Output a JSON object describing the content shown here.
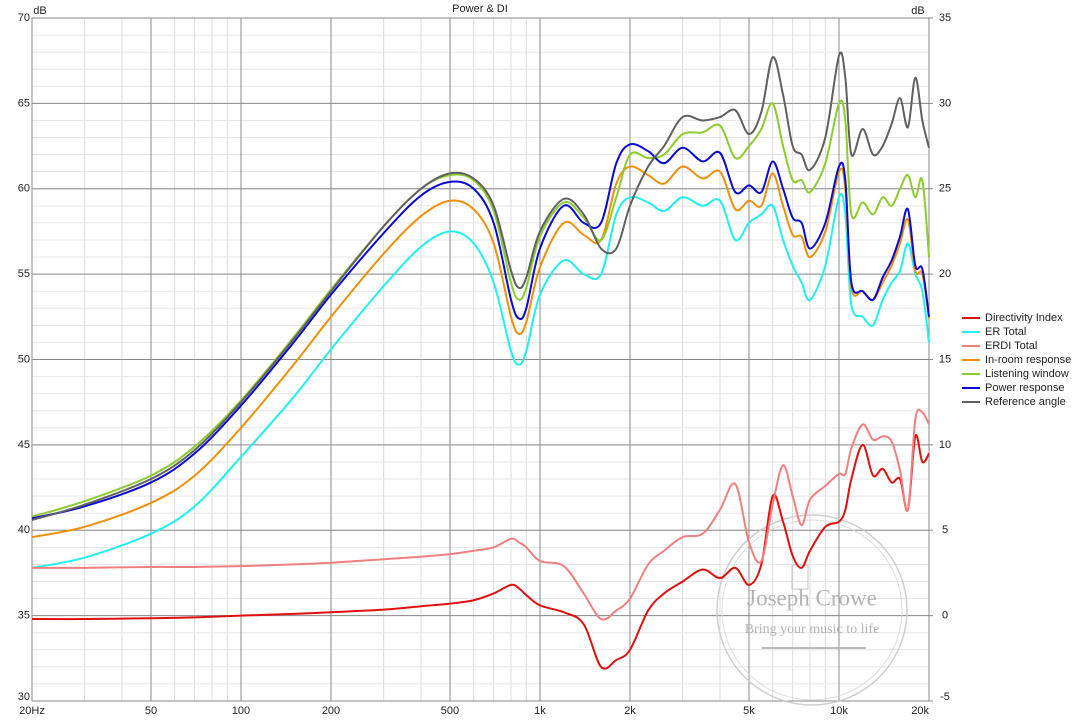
{
  "chart_data": {
    "type": "line",
    "title": "Power & DI",
    "y_label": "dB",
    "y2_label": "dB",
    "x_log": true,
    "grid": true,
    "minor_grid": true,
    "legend_position": "right",
    "xlim": [
      20,
      20000
    ],
    "ylim": [
      30,
      70
    ],
    "y2lim": [
      -5,
      35
    ],
    "xticks": [
      {
        "value": 20,
        "label": "20Hz"
      },
      50,
      100,
      200,
      500,
      {
        "value": 1000,
        "label": "1k"
      },
      {
        "value": 2000,
        "label": "2k"
      },
      {
        "value": 5000,
        "label": "5k"
      },
      {
        "value": 10000,
        "label": "10k"
      },
      {
        "value": 20000,
        "label": "20k"
      }
    ],
    "yticks": [
      30,
      35,
      40,
      45,
      50,
      55,
      60,
      65,
      70
    ],
    "y2ticks": [
      -5,
      0,
      5,
      10,
      15,
      20,
      25,
      30,
      35
    ],
    "x": [
      20,
      30,
      50,
      70,
      100,
      150,
      200,
      300,
      400,
      500,
      600,
      700,
      800,
      850,
      900,
      1000,
      1200,
      1400,
      1600,
      1800,
      2000,
      2300,
      2600,
      3000,
      3500,
      4000,
      4500,
      5000,
      5500,
      6000,
      6500,
      7000,
      7500,
      8000,
      9000,
      10000,
      10500,
      11000,
      12000,
      13000,
      14000,
      15000,
      16000,
      17000,
      18000,
      19000,
      20000
    ],
    "series": [
      {
        "name": "Directivity Index",
        "color": "#e01010",
        "axis": "y2",
        "values": [
          -0.2,
          -0.2,
          -0.15,
          -0.1,
          0,
          0.1,
          0.2,
          0.35,
          0.55,
          0.7,
          0.9,
          1.3,
          1.8,
          1.6,
          1.2,
          0.6,
          0.2,
          -0.5,
          -3.0,
          -2.6,
          -2.0,
          0.3,
          1.3,
          2.0,
          2.7,
          2.2,
          2.8,
          1.8,
          3.0,
          7.0,
          5.5,
          3.5,
          2.8,
          3.8,
          5.2,
          5.5,
          6.2,
          8.0,
          10.0,
          8.2,
          8.6,
          7.8,
          8.0,
          6.2,
          10.5,
          9.0,
          9.5
        ]
      },
      {
        "name": "ER Total",
        "color": "#20f0f0",
        "values": [
          37.8,
          38.4,
          39.8,
          41.4,
          44.3,
          47.8,
          50.6,
          54.3,
          56.6,
          57.5,
          56.8,
          54.5,
          50.5,
          49.7,
          50.5,
          53.8,
          55.8,
          55.0,
          55.0,
          58.5,
          59.5,
          59.2,
          58.7,
          59.5,
          59.0,
          59.3,
          57.0,
          58.0,
          58.5,
          59.0,
          57.0,
          55.5,
          54.5,
          53.5,
          55.5,
          59.5,
          58.5,
          53.2,
          52.5,
          52.0,
          53.5,
          54.5,
          55.2,
          56.8,
          55.0,
          54.0,
          51.0
        ]
      },
      {
        "name": "ERDI Total",
        "color": "#f08080",
        "axis": "y2",
        "values": [
          2.8,
          2.8,
          2.85,
          2.85,
          2.9,
          3.0,
          3.1,
          3.3,
          3.45,
          3.6,
          3.8,
          4.0,
          4.5,
          4.3,
          4.0,
          3.2,
          2.9,
          1.3,
          -0.2,
          0.3,
          1.0,
          3.0,
          3.8,
          4.6,
          4.8,
          6.2,
          7.7,
          4.3,
          3.2,
          6.5,
          8.8,
          7.0,
          5.3,
          6.8,
          7.6,
          8.3,
          8.3,
          9.8,
          11.2,
          10.3,
          10.5,
          10.2,
          8.5,
          6.2,
          11.5,
          11.9,
          11.2
        ]
      },
      {
        "name": "In-room response",
        "color": "#f0900a",
        "values": [
          39.6,
          40.2,
          41.6,
          43.2,
          46.0,
          49.7,
          52.5,
          56.2,
          58.4,
          59.3,
          58.8,
          56.8,
          52.5,
          51.5,
          52.2,
          55.4,
          58.0,
          57.3,
          57.0,
          60.3,
          61.3,
          60.8,
          60.3,
          61.3,
          60.6,
          61.0,
          58.8,
          59.3,
          59.0,
          60.9,
          59.0,
          57.3,
          57.2,
          56.0,
          57.5,
          61.0,
          60.0,
          54.2,
          54.0,
          53.5,
          54.5,
          55.5,
          56.8,
          58.2,
          55.2,
          55.0,
          52.4
        ]
      },
      {
        "name": "Listening window",
        "color": "#8ccc30",
        "values": [
          40.8,
          41.7,
          43.2,
          44.9,
          47.6,
          51.3,
          54.1,
          57.8,
          60.0,
          60.8,
          60.5,
          58.7,
          54.5,
          53.5,
          54.2,
          57.2,
          59.2,
          58.3,
          57.0,
          59.5,
          62.0,
          61.8,
          62.0,
          63.2,
          63.3,
          63.7,
          61.8,
          62.5,
          63.5,
          65.0,
          62.5,
          60.5,
          60.5,
          59.8,
          61.5,
          65.0,
          64.0,
          58.5,
          59.2,
          58.5,
          59.5,
          59.0,
          60.0,
          60.8,
          59.5,
          60.5,
          56.0
        ]
      },
      {
        "name": "Power response",
        "color": "#0a0ad0",
        "values": [
          40.7,
          41.4,
          42.8,
          44.5,
          47.3,
          51.0,
          53.8,
          57.4,
          59.6,
          60.4,
          60.0,
          58.0,
          53.5,
          52.4,
          53.0,
          56.5,
          59.0,
          58.0,
          58.0,
          61.5,
          62.6,
          62.2,
          61.5,
          62.4,
          61.6,
          62.1,
          59.8,
          60.2,
          59.8,
          61.6,
          60.0,
          58.3,
          58.0,
          56.5,
          58.0,
          61.3,
          60.5,
          54.5,
          54.0,
          53.5,
          54.8,
          55.8,
          57.2,
          58.8,
          55.5,
          55.3,
          52.5
        ]
      },
      {
        "name": "Reference angle",
        "color": "#606060",
        "values": [
          40.6,
          41.5,
          43.0,
          44.7,
          47.5,
          51.2,
          54.0,
          57.8,
          60.0,
          60.9,
          60.6,
          59.0,
          55.2,
          54.2,
          54.8,
          57.5,
          59.4,
          58.5,
          56.5,
          56.5,
          59.0,
          61.3,
          62.5,
          64.2,
          64.0,
          64.2,
          64.6,
          63.2,
          64.5,
          67.7,
          65.5,
          62.5,
          62.0,
          61.1,
          63.0,
          67.8,
          66.5,
          62.0,
          63.5,
          62.0,
          62.5,
          63.8,
          65.3,
          63.6,
          66.5,
          64.0,
          62.4
        ]
      }
    ],
    "watermark": {
      "name": "Joseph Crowe",
      "tagline": "Bring your music to life"
    }
  }
}
